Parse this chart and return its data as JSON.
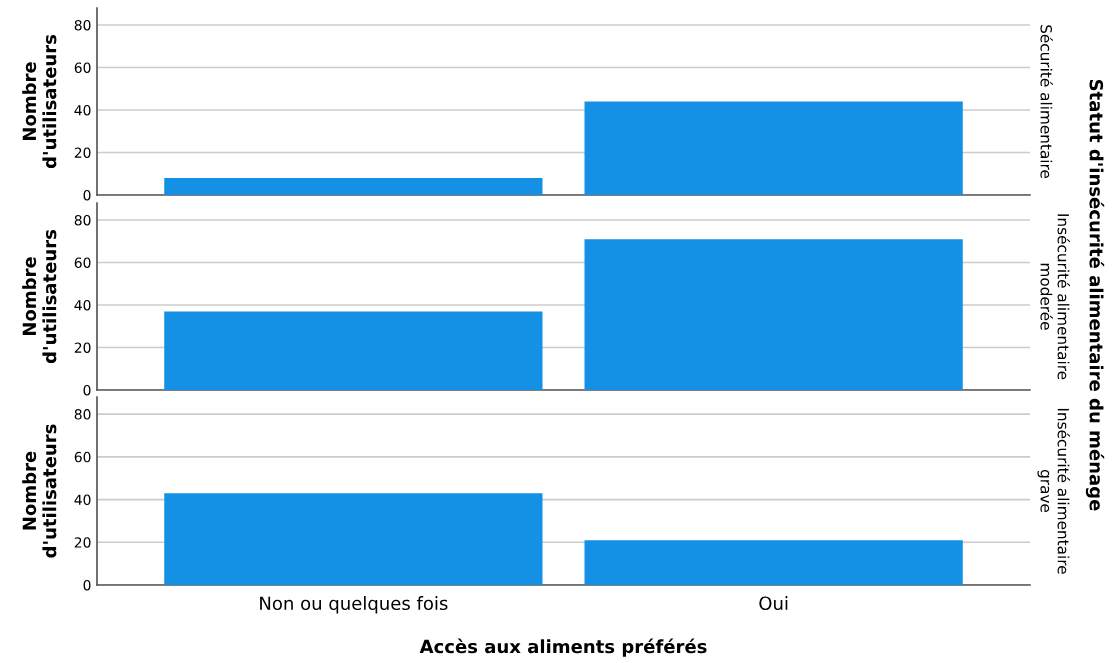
{
  "chart_data": [
    {
      "type": "bar",
      "categories": [
        null,
        null
      ],
      "values": [
        8,
        44
      ],
      "color": "#1490e4",
      "ylabel": "Nombre\nd'utilisateurs",
      "y2label": "Sécurité alimentaire",
      "ylim": [
        0,
        88
      ],
      "yticks": [
        0,
        20,
        40,
        60,
        80
      ],
      "grid": "y",
      "annotations": [
        "Statut d'insécurité alimentaire du ménage"
      ]
    },
    {
      "type": "bar",
      "categories": [
        null,
        null
      ],
      "values": [
        37,
        71
      ],
      "color": "#1490e4",
      "ylabel": "Nombre\nd'utilisateurs",
      "y2label": "Insécurité alimentaire\nmoderée",
      "ylim": [
        0,
        88
      ],
      "yticks": [
        0,
        20,
        40,
        60,
        80
      ],
      "grid": "y"
    },
    {
      "type": "bar",
      "categories": [
        "Non ou quelques fois",
        "Oui"
      ],
      "values": [
        43,
        21
      ],
      "color": "#1490e4",
      "ylabel": "Nombre\nd'utilisateurs",
      "y2label": "Insécurité alimentaire\ngrave",
      "xlabel": "Accès aux aliments préférés",
      "ylim": [
        0,
        88
      ],
      "yticks": [
        0,
        20,
        40,
        60,
        80
      ],
      "grid": "y"
    }
  ]
}
